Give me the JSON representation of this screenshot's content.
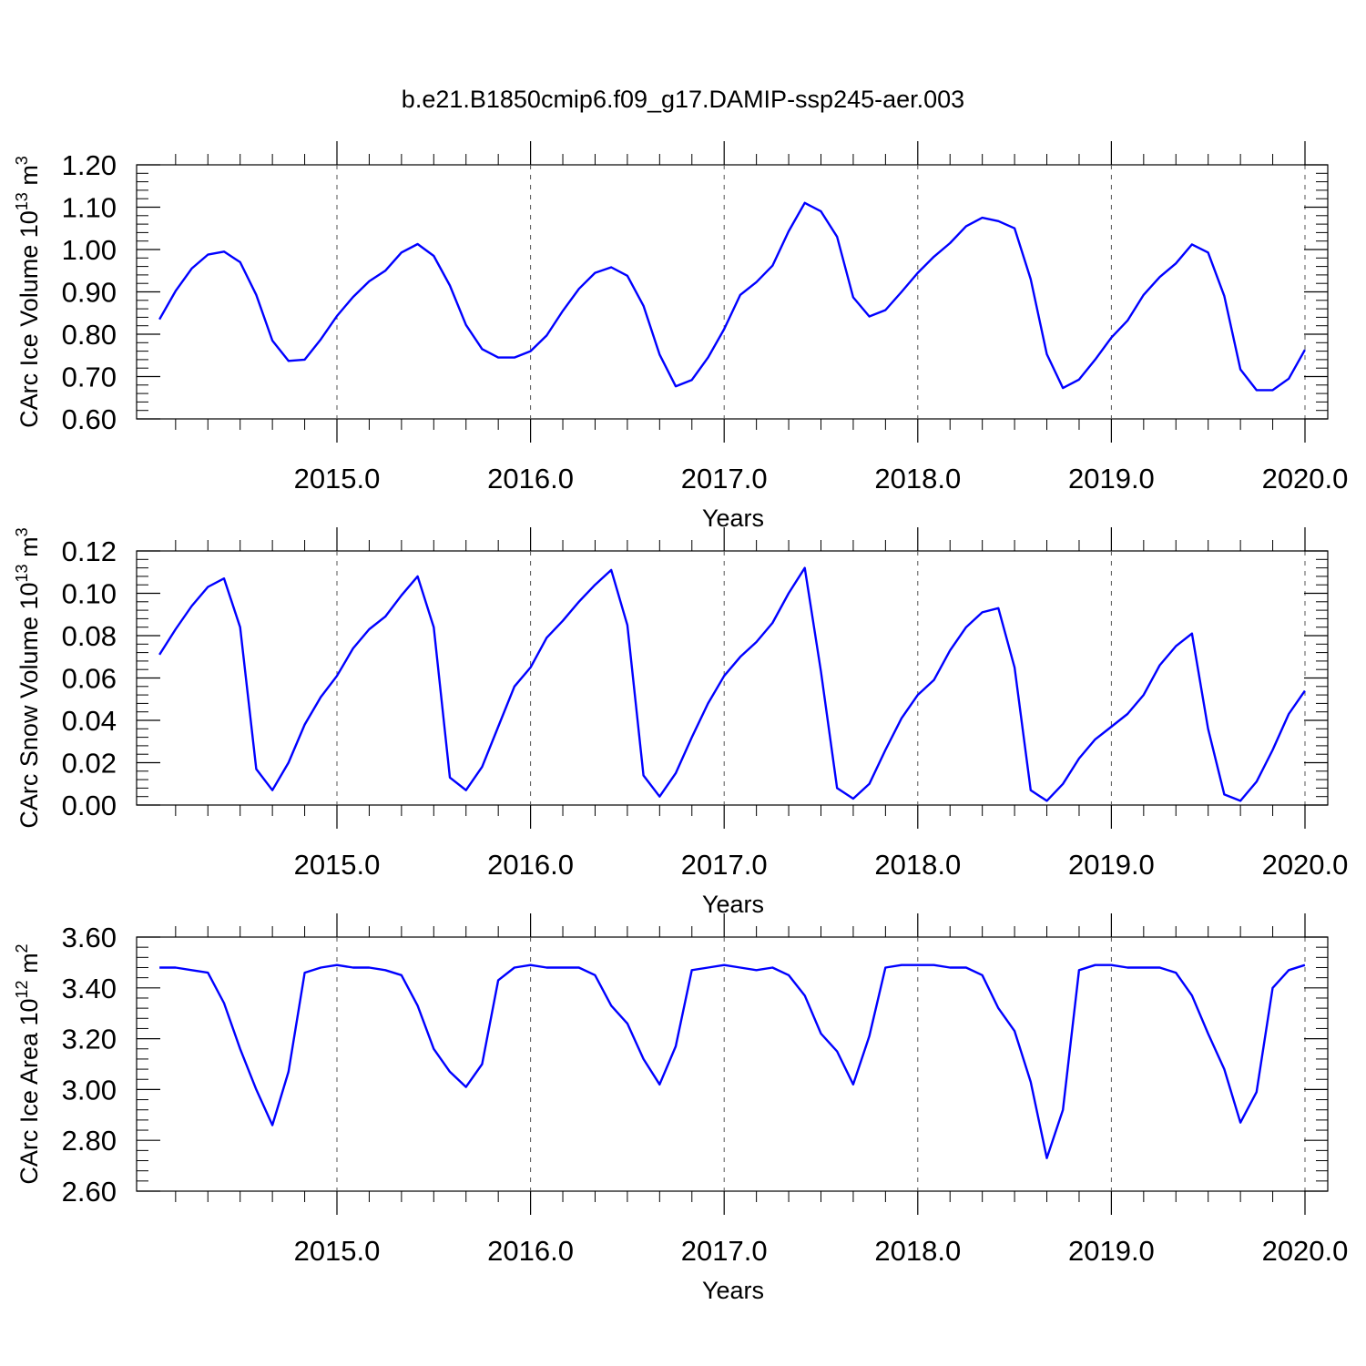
{
  "title": "b.e21.B1850cmip6.f09_g17.DAMIP-ssp245-aer.003",
  "colors": {
    "line": "#0000ff",
    "axis": "#000000",
    "grid": "#555555"
  },
  "chart_data": [
    {
      "type": "line",
      "ylabel": {
        "text": "CArc Ice Volume 10",
        "sup": "13",
        "unit": " m",
        "unit_sup": "3"
      },
      "xlabel": "Years",
      "x_ticks": [
        2015,
        2016,
        2017,
        2018,
        2019,
        2020
      ],
      "x_tick_labels": [
        "2015.0",
        "2016.0",
        "2017.0",
        "2018.0",
        "2019.0",
        "2020.0"
      ],
      "xlim": [
        2014.0,
        2020.12
      ],
      "ylim": [
        0.6,
        1.2
      ],
      "y_ticks": [
        0.6,
        0.7,
        0.8,
        0.9,
        1.0,
        1.1,
        1.2
      ],
      "y_tick_labels": [
        "0.60",
        "0.70",
        "0.80",
        "0.90",
        "1.00",
        "1.10",
        "1.20"
      ],
      "grid": "dashed vertical at labeled years",
      "series": [
        {
          "x_start": 2014.0833,
          "x_step": 0.08333,
          "values": [
            0.835,
            0.902,
            0.955,
            0.988,
            0.995,
            0.97,
            0.893,
            0.785,
            0.737,
            0.74,
            0.788,
            0.843,
            0.888,
            0.925,
            0.95,
            0.993,
            1.013,
            0.985,
            0.915,
            0.822,
            0.765,
            0.745,
            0.745,
            0.76,
            0.797,
            0.855,
            0.907,
            0.945,
            0.958,
            0.938,
            0.867,
            0.752,
            0.677,
            0.692,
            0.745,
            0.812,
            0.893,
            0.923,
            0.962,
            1.043,
            1.11,
            1.09,
            1.03,
            0.887,
            0.842,
            0.857,
            0.9,
            0.945,
            0.983,
            1.015,
            1.055,
            1.075,
            1.067,
            1.05,
            0.93,
            0.753,
            0.673,
            0.693,
            0.74,
            0.792,
            0.832,
            0.893,
            0.935,
            0.967,
            1.012,
            0.993,
            0.89,
            0.717,
            0.668,
            0.668,
            0.695,
            0.763
          ]
        }
      ]
    },
    {
      "type": "line",
      "ylabel": {
        "text": "CArc Snow Volume 10",
        "sup": "13",
        "unit": " m",
        "unit_sup": "3"
      },
      "xlabel": "Years",
      "x_ticks": [
        2015,
        2016,
        2017,
        2018,
        2019,
        2020
      ],
      "x_tick_labels": [
        "2015.0",
        "2016.0",
        "2017.0",
        "2018.0",
        "2019.0",
        "2020.0"
      ],
      "xlim": [
        2014.0,
        2020.12
      ],
      "ylim": [
        0.0,
        0.12
      ],
      "y_ticks": [
        0.0,
        0.02,
        0.04,
        0.06,
        0.08,
        0.1,
        0.12
      ],
      "y_tick_labels": [
        "0.00",
        "0.02",
        "0.04",
        "0.06",
        "0.08",
        "0.10",
        "0.12"
      ],
      "grid": "dashed vertical at labeled years",
      "series": [
        {
          "x_start": 2014.0833,
          "x_step": 0.08333,
          "values": [
            0.071,
            0.083,
            0.094,
            0.103,
            0.107,
            0.084,
            0.017,
            0.007,
            0.02,
            0.038,
            0.051,
            0.061,
            0.074,
            0.083,
            0.089,
            0.099,
            0.108,
            0.084,
            0.013,
            0.007,
            0.018,
            0.037,
            0.056,
            0.065,
            0.079,
            0.087,
            0.096,
            0.104,
            0.111,
            0.085,
            0.014,
            0.004,
            0.015,
            0.032,
            0.048,
            0.061,
            0.07,
            0.077,
            0.086,
            0.1,
            0.112,
            0.063,
            0.008,
            0.003,
            0.01,
            0.026,
            0.041,
            0.052,
            0.059,
            0.073,
            0.084,
            0.091,
            0.093,
            0.065,
            0.007,
            0.002,
            0.01,
            0.022,
            0.031,
            0.037,
            0.043,
            0.052,
            0.066,
            0.075,
            0.081,
            0.036,
            0.005,
            0.002,
            0.011,
            0.026,
            0.043,
            0.054
          ]
        }
      ]
    },
    {
      "type": "line",
      "ylabel": {
        "text": "CArc Ice Area 10",
        "sup": "12",
        "unit": " m",
        "unit_sup": "2"
      },
      "xlabel": "Years",
      "x_ticks": [
        2015,
        2016,
        2017,
        2018,
        2019,
        2020
      ],
      "x_tick_labels": [
        "2015.0",
        "2016.0",
        "2017.0",
        "2018.0",
        "2019.0",
        "2020.0"
      ],
      "xlim": [
        2014.0,
        2020.12
      ],
      "ylim": [
        2.6,
        3.6
      ],
      "y_ticks": [
        2.6,
        2.8,
        3.0,
        3.2,
        3.4,
        3.6
      ],
      "y_tick_labels": [
        "2.60",
        "2.80",
        "3.00",
        "3.20",
        "3.40",
        "3.60"
      ],
      "grid": "dashed vertical at labeled years",
      "series": [
        {
          "x_start": 2014.0833,
          "x_step": 0.08333,
          "values": [
            3.48,
            3.48,
            3.47,
            3.46,
            3.34,
            3.16,
            3.0,
            2.86,
            3.07,
            3.46,
            3.48,
            3.49,
            3.48,
            3.48,
            3.47,
            3.45,
            3.33,
            3.16,
            3.07,
            3.01,
            3.1,
            3.43,
            3.48,
            3.49,
            3.48,
            3.48,
            3.48,
            3.45,
            3.33,
            3.26,
            3.12,
            3.02,
            3.17,
            3.47,
            3.48,
            3.49,
            3.48,
            3.47,
            3.48,
            3.45,
            3.37,
            3.22,
            3.15,
            3.02,
            3.21,
            3.48,
            3.49,
            3.49,
            3.49,
            3.48,
            3.48,
            3.45,
            3.32,
            3.23,
            3.03,
            2.73,
            2.92,
            3.47,
            3.49,
            3.49,
            3.48,
            3.48,
            3.48,
            3.46,
            3.37,
            3.22,
            3.08,
            2.87,
            2.99,
            3.4,
            3.47,
            3.49
          ]
        }
      ]
    }
  ]
}
